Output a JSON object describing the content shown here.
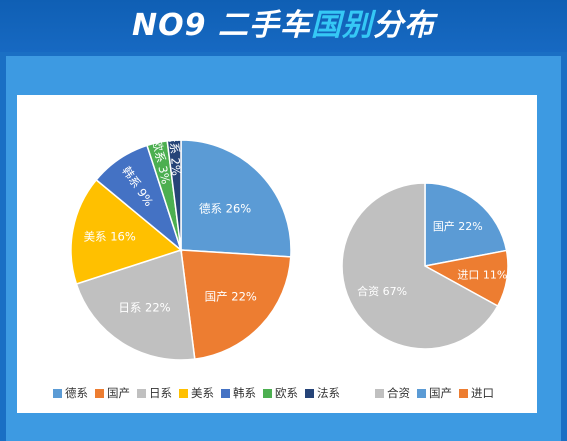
{
  "title": {
    "prefix": "NO9 二手车",
    "highlight": "国别",
    "suffix": "分布"
  },
  "chart_data": [
    {
      "type": "pie",
      "categories": [
        "德系",
        "国产",
        "日系",
        "美系",
        "韩系",
        "欧系",
        "法系"
      ],
      "values": [
        26,
        22,
        22,
        16,
        9,
        3,
        2
      ],
      "labels": [
        "德系 26%",
        "国产 22%",
        "日系 22%",
        "美系 16%",
        "韩系 9%",
        "欧系 3%",
        "法系 2%"
      ],
      "unit": "%",
      "colors": [
        "#5b9bd5",
        "#ed7d31",
        "#c0c0c0",
        "#ffc000",
        "#4472c4",
        "#4caf50",
        "#264478"
      ],
      "legend": "bottom"
    },
    {
      "type": "pie",
      "categories": [
        "国产",
        "进口",
        "合资"
      ],
      "values": [
        22,
        11,
        67
      ],
      "labels": [
        "国产 22%",
        "进口 11%",
        "合资 67%"
      ],
      "legend_order": [
        "合资",
        "国产",
        "进口"
      ],
      "unit": "%",
      "colors": [
        "#5b9bd5",
        "#ed7d31",
        "#c0c0c0"
      ],
      "legend": "bottom"
    }
  ]
}
